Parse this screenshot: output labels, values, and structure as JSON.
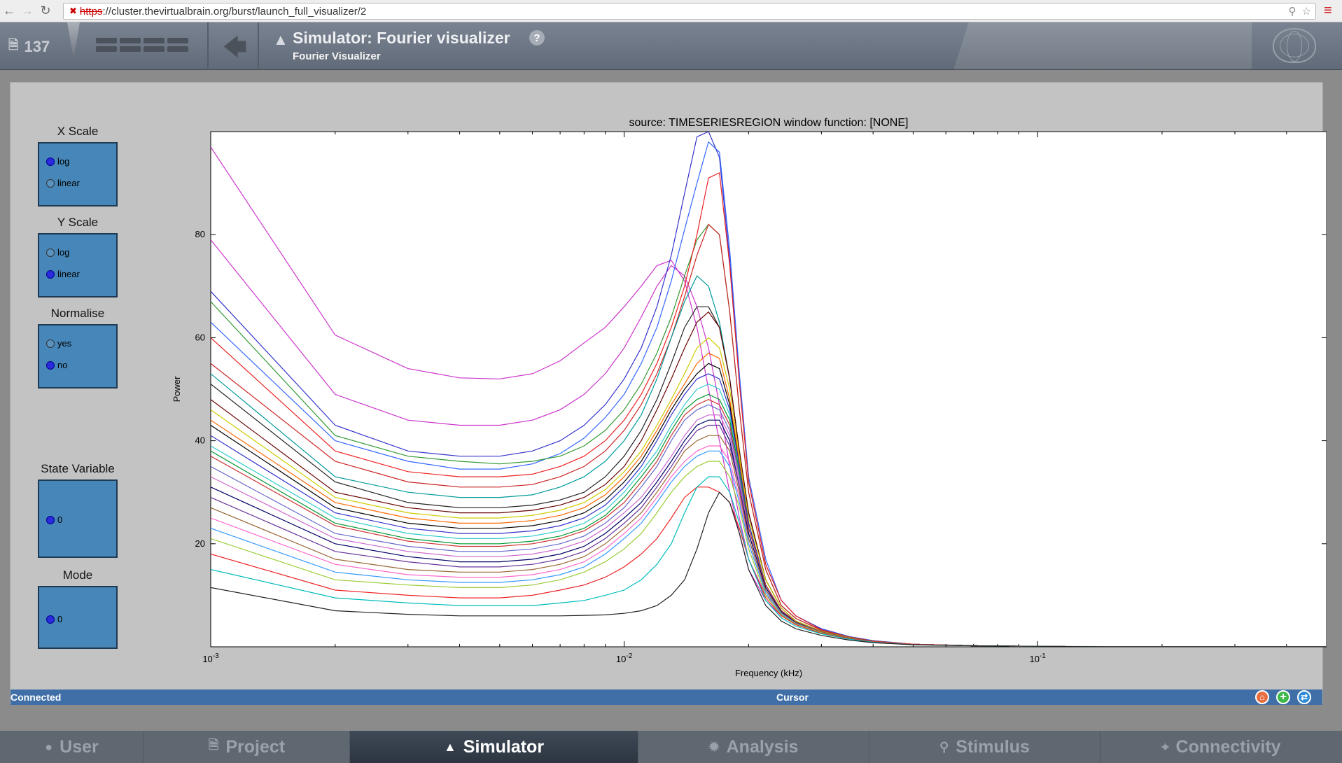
{
  "browser": {
    "url_scheme": "https",
    "url_rest": "://cluster.thevirtualbrain.org/burst/launch_full_visualizer/2"
  },
  "header": {
    "project_count": "137",
    "title": "Simulator: Fourier visualizer",
    "subtitle": "Fourier Visualizer",
    "help": "?"
  },
  "controls": {
    "x_scale": {
      "title": "X Scale",
      "options": [
        "log",
        "linear"
      ],
      "selected": "log"
    },
    "y_scale": {
      "title": "Y Scale",
      "options": [
        "log",
        "linear"
      ],
      "selected": "linear"
    },
    "normalise": {
      "title": "Normalise",
      "options": [
        "yes",
        "no"
      ],
      "selected": "no"
    },
    "state_variable": {
      "title": "State Variable",
      "options": [
        "0"
      ],
      "selected": "0"
    },
    "mode": {
      "title": "Mode",
      "options": [
        "0"
      ],
      "selected": "0"
    }
  },
  "chart_data": {
    "type": "line",
    "title": "source: TIMESERIESREGION  window function: [NONE]",
    "xlabel": "Frequency (kHz)",
    "ylabel": "Power",
    "xscale": "log",
    "xlim": [
      0.001,
      0.5
    ],
    "ylim": [
      0,
      100
    ],
    "x_tick_labels": [
      "10^-3",
      "10^-2",
      "10^-1"
    ],
    "y_tick_labels": [
      "20",
      "40",
      "60",
      "80"
    ],
    "x": [
      0.001,
      0.002,
      0.003,
      0.004,
      0.005,
      0.006,
      0.007,
      0.008,
      0.009,
      0.01,
      0.011,
      0.012,
      0.013,
      0.014,
      0.015,
      0.016,
      0.017,
      0.018,
      0.019,
      0.02,
      0.022,
      0.024,
      0.026,
      0.03,
      0.035,
      0.04,
      0.05,
      0.07,
      0.1,
      0.15,
      0.2,
      0.3,
      0.5
    ],
    "series": [
      {
        "values": [
          97,
          60.5,
          54,
          52.2,
          52,
          53,
          55.5,
          59,
          62,
          66,
          70,
          74,
          75,
          71,
          62,
          50,
          40,
          30,
          22,
          15,
          9,
          6,
          4.5,
          2.8,
          1.6,
          1,
          0.5,
          0.2,
          0.1,
          0.05,
          0,
          0,
          0
        ],
        "color": "#cc33cc"
      },
      {
        "values": [
          79,
          49,
          44,
          43,
          43,
          44,
          46,
          49,
          53,
          58,
          64,
          70,
          74,
          72,
          66,
          58,
          47,
          35,
          25,
          17,
          10,
          7,
          5,
          3,
          1.8,
          1.1,
          0.5,
          0.2,
          0.1,
          0,
          0,
          0,
          0
        ],
        "color": "#cc33cc"
      },
      {
        "values": [
          69,
          43,
          38,
          37,
          37,
          38,
          40,
          43,
          47,
          52,
          58,
          66,
          76,
          88,
          99,
          100,
          95,
          75,
          52,
          32,
          16,
          9,
          6,
          3.5,
          2,
          1.2,
          0.5,
          0.2,
          0.1,
          0,
          0,
          0,
          0
        ],
        "color": "#3333cc"
      },
      {
        "values": [
          63,
          40,
          36,
          34.5,
          34.5,
          35.5,
          37.5,
          40.5,
          44.5,
          49,
          55,
          62,
          71,
          81,
          90,
          98,
          96,
          77,
          53,
          33,
          17,
          9,
          6,
          3.4,
          2,
          1.2,
          0.5,
          0.2,
          0.1,
          0,
          0,
          0,
          0
        ],
        "color": "#3366ff"
      },
      {
        "values": [
          67,
          41,
          37,
          36,
          35.5,
          36,
          37,
          39,
          42,
          46,
          51,
          57,
          64,
          72,
          79,
          82,
          80,
          65,
          46,
          30,
          15,
          8,
          5.5,
          3.2,
          1.9,
          1.1,
          0.5,
          0.2,
          0.1,
          0,
          0,
          0,
          0
        ],
        "color": "#339933"
      },
      {
        "values": [
          60,
          38,
          34,
          33,
          33,
          33.5,
          35,
          37,
          40,
          44,
          49,
          55,
          62,
          70,
          80,
          91,
          92,
          74,
          51,
          32,
          16,
          9,
          6,
          3.3,
          1.9,
          1.1,
          0.5,
          0.2,
          0.1,
          0,
          0,
          0,
          0
        ],
        "color": "#ee2222"
      },
      {
        "values": [
          55,
          36,
          32,
          31,
          31,
          31.5,
          33,
          35,
          38,
          42,
          47,
          53,
          60,
          68,
          76,
          82,
          80,
          65,
          46,
          30,
          15,
          8,
          5.5,
          3.2,
          1.9,
          1.1,
          0.5,
          0.2,
          0.1,
          0,
          0,
          0,
          0
        ],
        "color": "#cc2222"
      },
      {
        "values": [
          53,
          33,
          30,
          29,
          29,
          29.5,
          31,
          33,
          36,
          40,
          45,
          52,
          60,
          67,
          72,
          70,
          63,
          52,
          38,
          26,
          13,
          7.5,
          5,
          3,
          1.8,
          1,
          0.5,
          0.2,
          0.1,
          0,
          0,
          0,
          0
        ],
        "color": "#009999"
      },
      {
        "values": [
          51,
          32,
          28,
          27,
          27,
          27.5,
          28.5,
          30,
          33,
          37,
          42,
          48,
          55,
          62,
          66,
          66,
          62,
          52,
          38,
          26,
          13,
          7.5,
          5,
          3,
          1.8,
          1,
          0.5,
          0.2,
          0.1,
          0,
          0,
          0,
          0
        ],
        "color": "#222222"
      },
      {
        "values": [
          48,
          30,
          27,
          26,
          26,
          26.5,
          27.5,
          29,
          31.5,
          35,
          40,
          46,
          52,
          58,
          63,
          65,
          62,
          52,
          38,
          26,
          13,
          7.5,
          5,
          3,
          1.8,
          1,
          0.5,
          0.2,
          0.1,
          0,
          0,
          0,
          0
        ],
        "color": "#660000"
      },
      {
        "values": [
          46,
          29,
          26,
          25,
          25,
          25.5,
          26.5,
          28,
          30.5,
          34,
          38,
          43,
          48,
          53,
          58,
          60,
          58,
          50,
          37,
          25,
          13,
          7.5,
          5,
          3,
          1.8,
          1,
          0.5,
          0.2,
          0.1,
          0,
          0,
          0,
          0
        ],
        "color": "#cccc00"
      },
      {
        "values": [
          44,
          28,
          25,
          24,
          24,
          24.5,
          25.5,
          27,
          29.5,
          33,
          37,
          42,
          47,
          51,
          55,
          57,
          56,
          48,
          36,
          24,
          12,
          7,
          4.8,
          2.9,
          1.7,
          1,
          0.5,
          0.2,
          0.1,
          0,
          0,
          0,
          0
        ],
        "color": "#ff6600"
      },
      {
        "values": [
          43,
          27,
          24,
          23,
          23,
          23.5,
          24.5,
          26,
          28.5,
          32,
          36,
          41,
          46,
          50,
          53,
          55,
          54,
          47,
          35,
          24,
          12,
          7,
          4.8,
          2.9,
          1.7,
          1,
          0.5,
          0.2,
          0.1,
          0,
          0,
          0,
          0
        ],
        "color": "#000000"
      },
      {
        "values": [
          41,
          26,
          23,
          22,
          22,
          22.5,
          23.5,
          25,
          27.5,
          31,
          35,
          40,
          45,
          49,
          52,
          53,
          52,
          46,
          35,
          24,
          12,
          7,
          4.8,
          2.9,
          1.7,
          1,
          0.5,
          0.2,
          0.1,
          0,
          0,
          0,
          0
        ],
        "color": "#3333cc"
      },
      {
        "values": [
          39,
          25,
          22,
          21,
          21,
          21.5,
          22.5,
          24,
          26.5,
          30,
          34,
          38,
          43,
          47,
          50,
          51,
          50,
          45,
          34,
          23,
          12,
          7,
          4.8,
          2.9,
          1.7,
          1,
          0.5,
          0.2,
          0.1,
          0,
          0,
          0,
          0
        ],
        "color": "#33cccc"
      },
      {
        "values": [
          38,
          24,
          21,
          20,
          20,
          20.5,
          21.5,
          23,
          25.5,
          29,
          33,
          37,
          42,
          46,
          48,
          49,
          48,
          44,
          34,
          23,
          12,
          7,
          4.8,
          2.9,
          1.7,
          1,
          0.5,
          0.2,
          0.1,
          0,
          0,
          0,
          0
        ],
        "color": "#009933"
      },
      {
        "values": [
          37,
          23.5,
          20.5,
          19.5,
          19.5,
          20,
          21,
          22.5,
          25,
          28,
          32,
          36,
          41,
          45,
          47,
          48,
          47,
          43,
          33,
          23,
          12,
          7,
          4.8,
          2.9,
          1.7,
          1,
          0.5,
          0.2,
          0.1,
          0,
          0,
          0,
          0
        ],
        "color": "#cc3333"
      },
      {
        "values": [
          35,
          22,
          19.5,
          18.5,
          18.5,
          19,
          20,
          21.5,
          24,
          27,
          31,
          35,
          40,
          44,
          46,
          47,
          46,
          42,
          33,
          22,
          11.5,
          6.8,
          4.7,
          2.8,
          1.7,
          1,
          0.5,
          0.2,
          0.1,
          0,
          0,
          0,
          0
        ],
        "color": "#6666cc"
      },
      {
        "values": [
          33,
          21,
          18.5,
          17.5,
          17.5,
          18,
          19,
          20.5,
          23,
          26,
          29,
          33,
          37,
          41,
          44,
          45,
          45,
          41,
          32,
          22,
          11.5,
          6.8,
          4.7,
          2.8,
          1.7,
          1,
          0.5,
          0.2,
          0.1,
          0,
          0,
          0,
          0
        ],
        "color": "#cc66cc"
      },
      {
        "values": [
          31,
          20,
          17.5,
          16.5,
          16.5,
          17,
          18,
          19.5,
          22,
          25,
          28,
          32,
          36,
          40,
          43,
          44,
          44,
          40,
          31,
          22,
          11.5,
          6.8,
          4.7,
          2.8,
          1.7,
          1,
          0.5,
          0.2,
          0.1,
          0,
          0,
          0,
          0
        ],
        "color": "#000066"
      },
      {
        "values": [
          29,
          18.5,
          16.5,
          15.5,
          15.5,
          16,
          17,
          18.5,
          21,
          24,
          27,
          31,
          35,
          39,
          42,
          43,
          43,
          39,
          31,
          21,
          11,
          6.6,
          4.6,
          2.8,
          1.7,
          1,
          0.5,
          0.2,
          0.1,
          0,
          0,
          0,
          0
        ],
        "color": "#663399"
      },
      {
        "values": [
          27,
          17,
          15,
          14.5,
          14.5,
          15,
          16,
          17.5,
          20,
          23,
          26,
          30,
          34,
          38,
          40,
          41,
          41,
          38,
          30,
          21,
          11,
          6.6,
          4.6,
          2.8,
          1.7,
          1,
          0.5,
          0.2,
          0.1,
          0,
          0,
          0,
          0
        ],
        "color": "#996633"
      },
      {
        "values": [
          25,
          16,
          14,
          13.5,
          13.5,
          14,
          15,
          16.5,
          19,
          22,
          25,
          29,
          33,
          36,
          38,
          39,
          39,
          36,
          29,
          20,
          10.5,
          6.4,
          4.5,
          2.7,
          1.6,
          1,
          0.5,
          0.2,
          0.1,
          0,
          0,
          0,
          0
        ],
        "color": "#ff66cc"
      },
      {
        "values": [
          23,
          14.5,
          13,
          12.5,
          12.5,
          13,
          14,
          15.5,
          18,
          21,
          24,
          28,
          32,
          35,
          37,
          38,
          38,
          35,
          28,
          20,
          10.5,
          6.4,
          4.5,
          2.7,
          1.6,
          1,
          0.5,
          0.2,
          0.1,
          0,
          0,
          0,
          0
        ],
        "color": "#3399ff"
      },
      {
        "values": [
          21,
          13,
          12,
          11.5,
          11.5,
          12,
          13,
          14.5,
          16.5,
          19,
          22,
          26,
          30,
          33,
          35,
          36,
          36,
          33,
          27,
          19,
          10,
          6.2,
          4.4,
          2.7,
          1.6,
          1,
          0.5,
          0.2,
          0.1,
          0,
          0,
          0,
          0
        ],
        "color": "#99cc33"
      },
      {
        "values": [
          18,
          11,
          10,
          9.5,
          9.5,
          10,
          11,
          12,
          13.5,
          15.5,
          18,
          21,
          25,
          29,
          31,
          31,
          30,
          28,
          23,
          17,
          9.5,
          6,
          4.3,
          2.6,
          1.6,
          1,
          0.5,
          0.2,
          0.1,
          0,
          0,
          0,
          0
        ],
        "color": "#ee2222"
      },
      {
        "values": [
          15,
          9.5,
          8.5,
          8,
          8,
          8,
          8.5,
          9,
          10,
          11,
          13,
          16,
          20,
          26,
          31,
          33,
          33,
          30,
          24,
          17,
          9,
          5.6,
          4,
          2.5,
          1.5,
          0.9,
          0.4,
          0.2,
          0.1,
          0,
          0,
          0,
          0
        ],
        "color": "#00bbbb"
      },
      {
        "values": [
          11.5,
          7,
          6.3,
          6,
          6,
          6,
          6,
          6.1,
          6.2,
          6.5,
          7,
          8,
          10,
          13,
          19,
          26,
          30,
          28,
          22,
          15,
          8,
          5,
          3.5,
          2.2,
          1.3,
          0.8,
          0.4,
          0.2,
          0.1,
          0,
          0,
          0,
          0
        ],
        "color": "#222222"
      }
    ]
  },
  "status": {
    "left": "Connected",
    "center": "Cursor"
  },
  "tabs": [
    {
      "label": "User"
    },
    {
      "label": "Project"
    },
    {
      "label": "Simulator"
    },
    {
      "label": "Analysis"
    },
    {
      "label": "Stimulus"
    },
    {
      "label": "Connectivity"
    }
  ]
}
